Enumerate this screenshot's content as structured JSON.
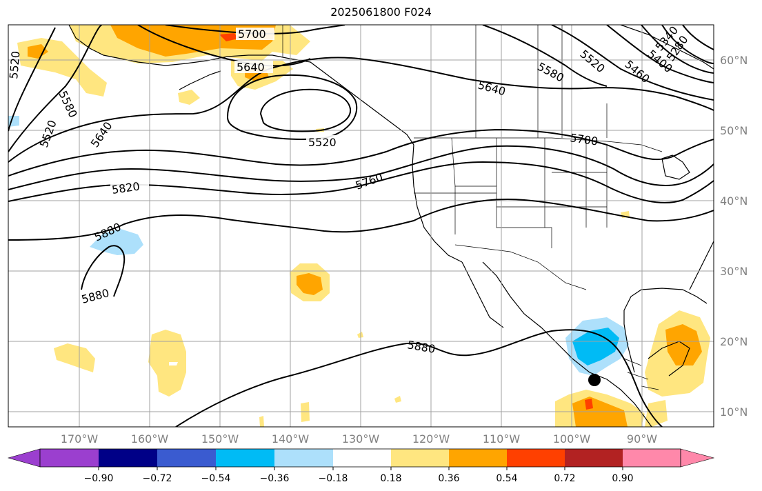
{
  "title": "2025061800 F024",
  "longitude_ticks": [
    "170°W",
    "160°W",
    "150°W",
    "140°W",
    "130°W",
    "120°W",
    "110°W",
    "100°W",
    "90°W"
  ],
  "latitude_ticks": [
    "60°N",
    "50°N",
    "40°N",
    "30°N",
    "20°N",
    "10°N"
  ],
  "contour_labels": {
    "c5700_top": "5700",
    "c5640_ak": "5640",
    "c5520_left": "5520",
    "c5580_left": "5580",
    "c5520_left2": "5520",
    "c5640_left": "5640",
    "c5520_low": "5520",
    "c5580_right": "5580",
    "c5640_right": "5640",
    "c5520_right": "5520",
    "c5460_right": "5460",
    "c5400_right": "5400",
    "c5340_right": "5340",
    "c5280_right": "5280",
    "c5700_mid": "5700",
    "c5820": "5820",
    "c5760": "5760",
    "c5880_w": "5880",
    "c5880_w2": "5880",
    "c5880_s": "5880"
  },
  "colorbar": {
    "colors": [
      "#9b3fcf",
      "#000087",
      "#3a5bd0",
      "#00bbf5",
      "#ade0fb",
      "#ffffff",
      "#ffe680",
      "#ffa500",
      "#ff4000",
      "#b22222",
      "#ff88aa"
    ],
    "tick_labels": [
      "−0.90",
      "−0.72",
      "−0.54",
      "−0.36",
      "−0.18",
      "0.18",
      "0.36",
      "0.54",
      "0.72",
      "0.90"
    ]
  },
  "colors": {
    "contour": "#000000",
    "gridline": "#a0a0a0",
    "fill_light_yellow": "#ffe680",
    "fill_orange": "#ffa500",
    "fill_red": "#ff4000",
    "fill_light_blue": "#ade0fb",
    "fill_blue": "#00bbf5"
  },
  "marker": "storm-center-dot"
}
